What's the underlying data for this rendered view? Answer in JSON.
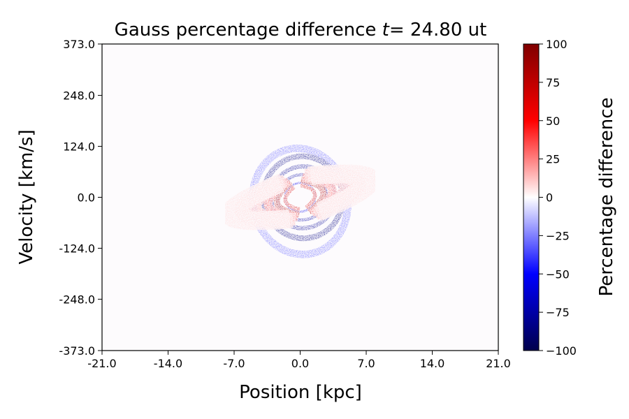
{
  "chart_data": {
    "type": "heatmap",
    "title": "Gauss percentage difference",
    "title_time_symbol": "t",
    "title_time_eq": "=",
    "title_time_value": "24.80",
    "title_time_unit": "ut",
    "xlabel": "Position [kpc]",
    "ylabel": "Velocity [km/s]",
    "xlim": [
      -21.0,
      21.0
    ],
    "ylim": [
      -373.0,
      373.0
    ],
    "x_ticks": [
      -21.0,
      -14.0,
      -7.0,
      0.0,
      7.0,
      14.0,
      21.0
    ],
    "x_tick_labels": [
      "-21.0",
      "-14.0",
      "-7.0",
      "0.0",
      "7.0",
      "14.0",
      "21.0"
    ],
    "y_ticks": [
      -373.0,
      -248.0,
      -124.0,
      0.0,
      124.0,
      248.0,
      373.0
    ],
    "y_tick_labels": [
      "-373.0",
      "-248.0",
      "-124.0",
      "0.0",
      "124.0",
      "248.0",
      "373.0"
    ],
    "colorbar": {
      "label": "Percentage difference",
      "min": -100,
      "max": 100,
      "ticks": [
        -100,
        -75,
        -50,
        -25,
        0,
        25,
        50,
        75,
        100
      ],
      "tick_labels": [
        "−100",
        "−75",
        "−50",
        "−25",
        "0",
        "25",
        "50",
        "75",
        "100"
      ],
      "colormap": "seismic",
      "colors": [
        "#00004c",
        "#0000ff",
        "#ffffff",
        "#ff0000",
        "#800000"
      ]
    },
    "features": [
      {
        "shape": "ellipse-ring",
        "cx": 0.0,
        "cy": -10.0,
        "rx": 5.0,
        "ry": 130.0,
        "value": -30
      },
      {
        "shape": "ellipse-ring",
        "cx": 0.3,
        "cy": 0.0,
        "rx": 4.2,
        "ry": 100.0,
        "value": -85
      },
      {
        "shape": "ellipse-ring",
        "cx": 0.3,
        "cy": 0.0,
        "rx": 3.4,
        "ry": 75.0,
        "value": -80
      },
      {
        "shape": "ellipse-ring",
        "cx": 0.2,
        "cy": 0.0,
        "rx": 2.6,
        "ry": 55.0,
        "value": -75
      },
      {
        "shape": "ellipse-ring",
        "cx": 0.0,
        "cy": 0.0,
        "rx": 1.6,
        "ry": 35.0,
        "value": -55
      },
      {
        "shape": "arc-pair",
        "cx": 0.0,
        "cy": 0.0,
        "rx": 3.6,
        "ry": 40.0,
        "value": 80
      },
      {
        "shape": "arc-pair",
        "cx": 0.0,
        "cy": 0.0,
        "rx": 2.3,
        "ry": 28.0,
        "value": 65
      },
      {
        "shape": "arc-pair",
        "cx": 0.0,
        "cy": 0.0,
        "rx": 5.0,
        "ry": 45.0,
        "value": 35
      },
      {
        "shape": "arc-pair",
        "cx": 0.0,
        "cy": 0.0,
        "rx": 7.0,
        "ry": 50.0,
        "value": 20
      },
      {
        "shape": "arc-pair",
        "cx": 0.0,
        "cy": 0.0,
        "rx": 9.0,
        "ry": 50.0,
        "value": 12
      },
      {
        "shape": "arc-pair",
        "cx": 0.0,
        "cy": 0.0,
        "rx": 11.0,
        "ry": 45.0,
        "value": 8
      }
    ]
  }
}
